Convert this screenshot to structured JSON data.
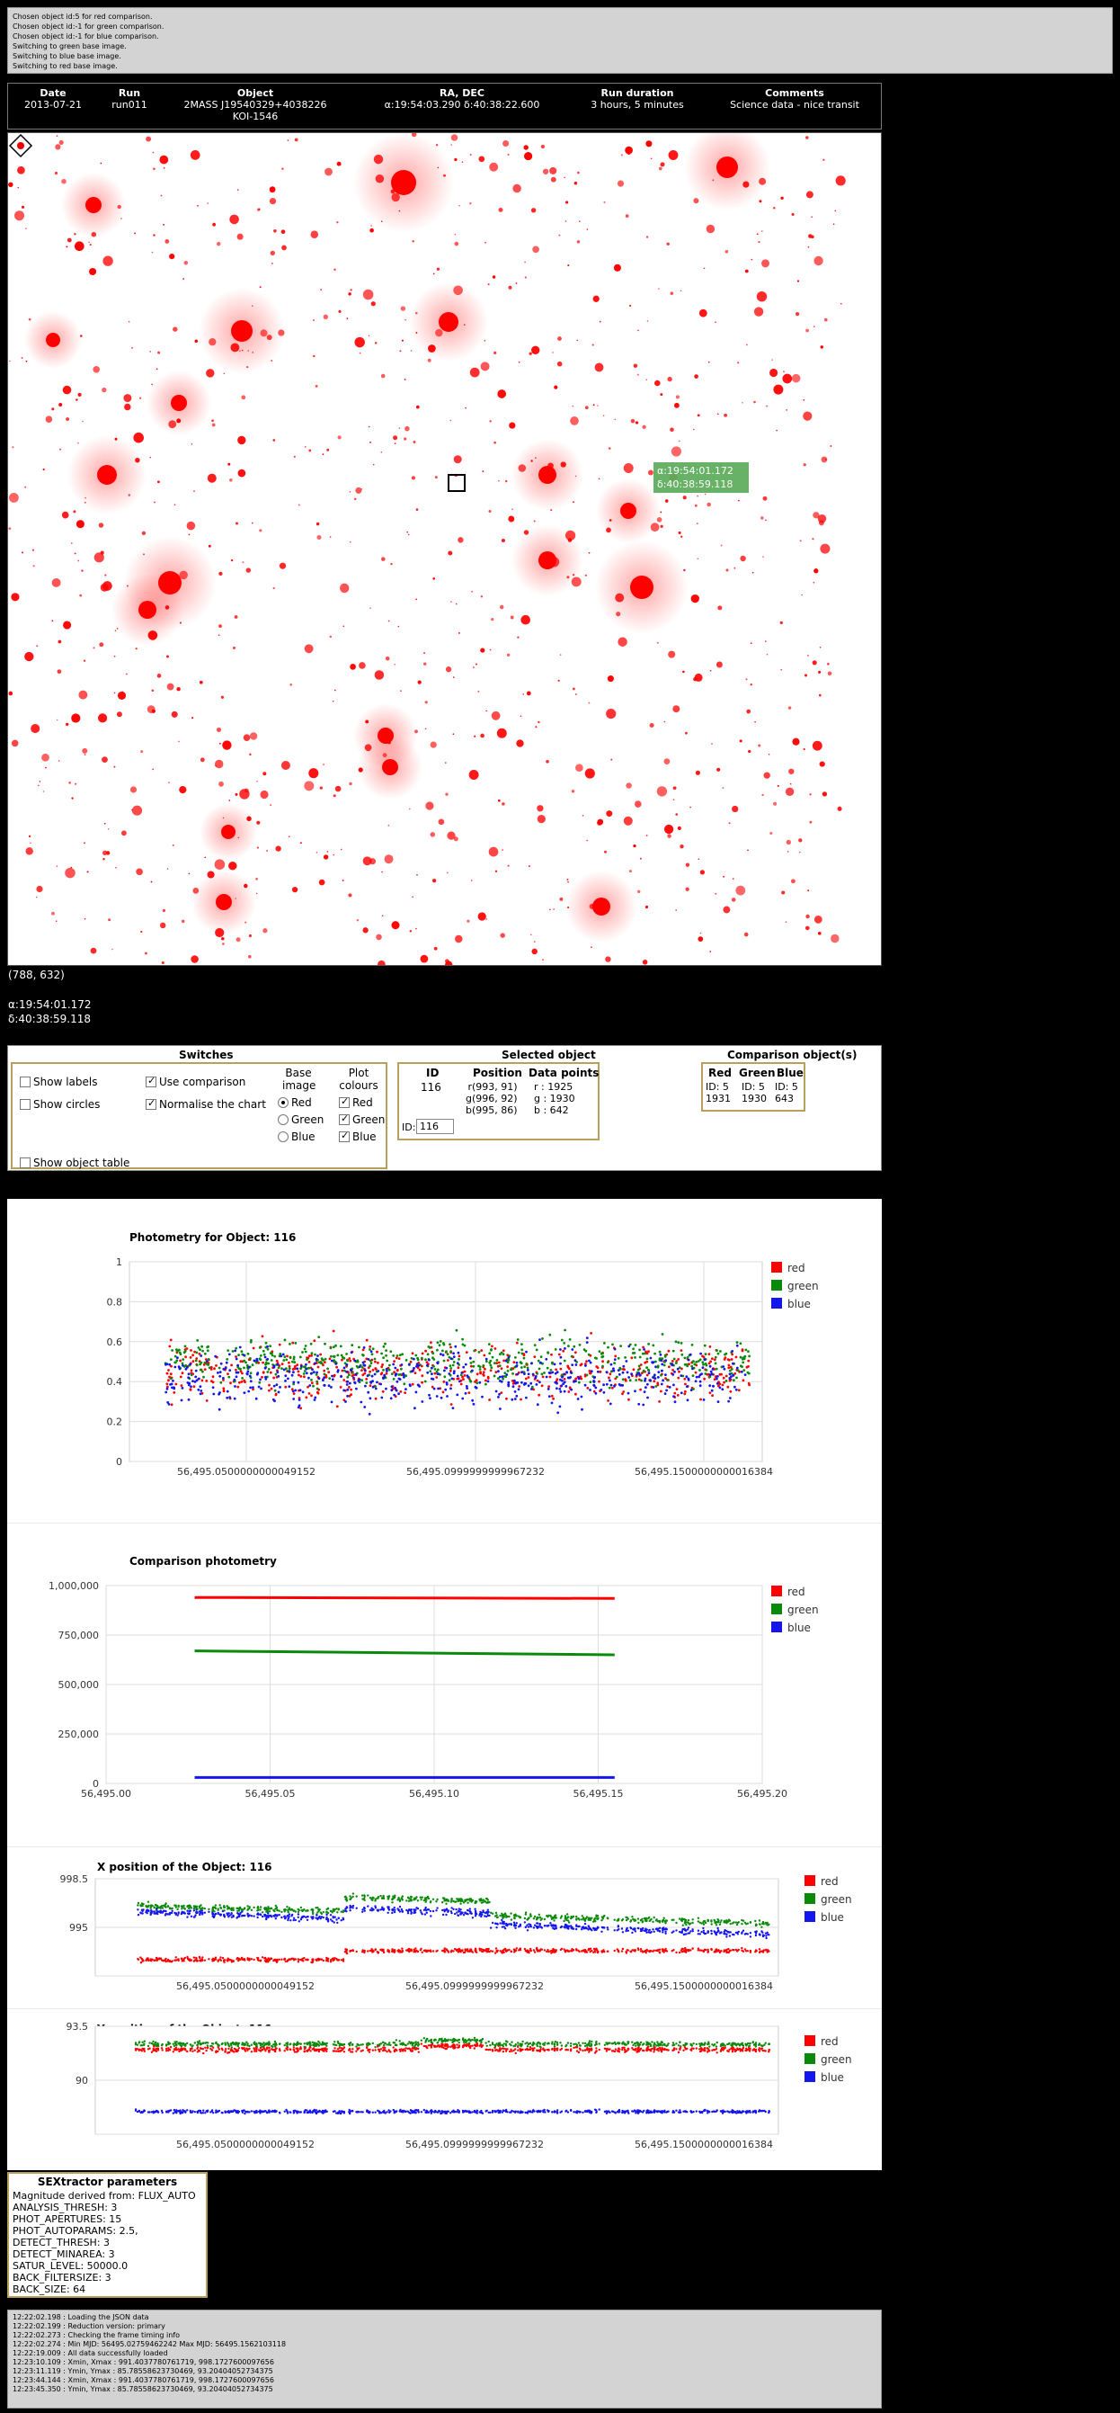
{
  "top_log": [
    "Chosen object id:5 for red comparison.",
    "Chosen object id:-1 for green comparison.",
    "Chosen object id:-1 for blue comparison.",
    "Switching to green base image.",
    "Switching to blue base image.",
    "Switching to red base image."
  ],
  "info": {
    "headers": [
      "Date",
      "Run",
      "Object",
      "RA, DEC",
      "Run duration",
      "Comments"
    ],
    "date": "2013-07-21",
    "run": "run011",
    "object_line1": "2MASS J19540329+4038226",
    "object_line2": "KOI-1546",
    "radec": "α:19:54:03.290 δ:40:38:22.600",
    "duration": "3 hours, 5 minutes",
    "comments": "Science data - nice transit"
  },
  "sky": {
    "readout_ra": "α:19:54:01.172",
    "readout_dec": "δ:40:38:59.118"
  },
  "cursor": {
    "pixel": "(788, 632)",
    "ra": "α:19:54:01.172",
    "dec": "δ:40:38:59.118"
  },
  "switches": {
    "title": "Switches",
    "show_labels": "Show labels",
    "show_circles": "Show circles",
    "use_comparison": "Use comparison",
    "normalise": "Normalise the chart",
    "show_object_table": "Show object table",
    "base_image_title_1": "Base",
    "base_image_title_2": "image",
    "plot_colours_title_1": "Plot",
    "plot_colours_title_2": "colours",
    "red": "Red",
    "green": "Green",
    "blue": "Blue",
    "state": {
      "show_labels": false,
      "show_circles": false,
      "use_comparison": true,
      "normalise": true,
      "show_object_table": false,
      "base_image": "red",
      "plot_red": true,
      "plot_green": true,
      "plot_blue": true
    }
  },
  "selected": {
    "title": "Selected object",
    "col_id": "ID",
    "col_position": "Position",
    "col_points": "Data points",
    "id": "116",
    "pos_r": "r(993, 91)",
    "pos_g": "g(996, 92)",
    "pos_b": "b(995, 86)",
    "pts_r": "r : 1925",
    "pts_g": "g : 1930",
    "pts_b": "b : 642",
    "id_label": "ID:",
    "id_value": "116"
  },
  "comparison": {
    "title": "Comparison object(s)",
    "col_red": "Red",
    "col_green": "Green",
    "col_blue": "Blue",
    "red_id": "ID: 5",
    "green_id": "ID: 5",
    "blue_id": "ID: 5",
    "red_n": "1931",
    "green_n": "1930",
    "blue_n": "643"
  },
  "colors": {
    "red": "#ff0000",
    "green": "#0a8a0a",
    "blue": "#1515ee",
    "gold": "#b8a05a"
  },
  "chart_data": [
    {
      "type": "scatter",
      "title": "Photometry for Object: 116",
      "ylim": [
        0,
        1
      ],
      "yticks": [
        "1",
        "0.8",
        "0.6",
        "0.4",
        "0.2",
        "0"
      ],
      "xticks": [
        "56,495.0500000000049152",
        "56,495.0999999999967232",
        "56,495.1500000000016384"
      ],
      "legend": [
        "red",
        "green",
        "blue"
      ],
      "series": [
        {
          "name": "red",
          "mean": 0.45,
          "spread": 0.15
        },
        {
          "name": "green",
          "mean": 0.5,
          "spread": 0.12
        },
        {
          "name": "blue",
          "mean": 0.42,
          "spread": 0.15
        }
      ]
    },
    {
      "type": "line",
      "title": "Comparison photometry",
      "ylim": [
        0,
        1000000
      ],
      "yticks": [
        "1,000,000",
        "750,000",
        "500,000",
        "250,000",
        "0"
      ],
      "xticks": [
        "56,495.00",
        "56,495.05",
        "56,495.10",
        "56,495.15",
        "56,495.20"
      ],
      "xlim": [
        56495.0,
        56495.2
      ],
      "legend": [
        "red",
        "green",
        "blue"
      ],
      "series": [
        {
          "name": "red",
          "x": [
            56495.027,
            56495.155
          ],
          "values": [
            940000,
            935000
          ]
        },
        {
          "name": "green",
          "x": [
            56495.027,
            56495.155
          ],
          "values": [
            670000,
            650000
          ]
        },
        {
          "name": "blue",
          "x": [
            56495.027,
            56495.155
          ],
          "values": [
            30000,
            30000
          ]
        }
      ]
    },
    {
      "type": "scatter",
      "title": "X position of the Object: 116",
      "yticks": [
        "998.5",
        "995"
      ],
      "ylim": [
        992.5,
        998.5
      ],
      "xticks": [
        "56,495.0500000000049152",
        "56,495.0999999999967232",
        "56,495.1500000000016384"
      ],
      "legend": [
        "red",
        "green",
        "blue"
      ]
    },
    {
      "type": "scatter",
      "title": "Y position of the Object: 116",
      "yticks": [
        "93.5",
        "90"
      ],
      "ylim": [
        85.5,
        93.5
      ],
      "xticks": [
        "56,495.0500000000049152",
        "56,495.0999999999967232",
        "56,495.1500000000016384"
      ],
      "legend": [
        "red",
        "green",
        "blue"
      ]
    }
  ],
  "sextractor": {
    "title": "SEXtractor parameters",
    "lines": [
      "Magnitude derived from: FLUX_AUTO",
      "ANALYSIS_THRESH: 3",
      "PHOT_APERTURES: 15",
      "PHOT_AUTOPARAMS: 2.5,",
      "DETECT_THRESH: 3",
      "DETECT_MINAREA: 3",
      "SATUR_LEVEL: 50000.0",
      "BACK_FILTERSIZE: 3",
      "BACK_SIZE: 64"
    ]
  },
  "bottom_log": [
    "12:22:02.198 : Loading the JSON data",
    "12:22:02.199 : Reduction version: primary",
    "12:22:02.273 : Checking the frame timing info",
    "12:22:02.274 : Min MJD: 56495.02759462242 Max MJD: 56495.1562103118",
    "12:22:19.009 : All data successfully loaded",
    "12:23:10.109 : Xmin, Xmax : 991.4037780761719, 998.1727600097656",
    "12:23:11.119 : Ymin, Ymax : 85.78558623730469, 93.20404052734375",
    "12:23:44.144 : Xmin, Xmax : 991.4037780761719, 998.1727600097656",
    "12:23:45.350 : Ymin, Ymax : 85.78558623730469, 93.20404052734375"
  ]
}
